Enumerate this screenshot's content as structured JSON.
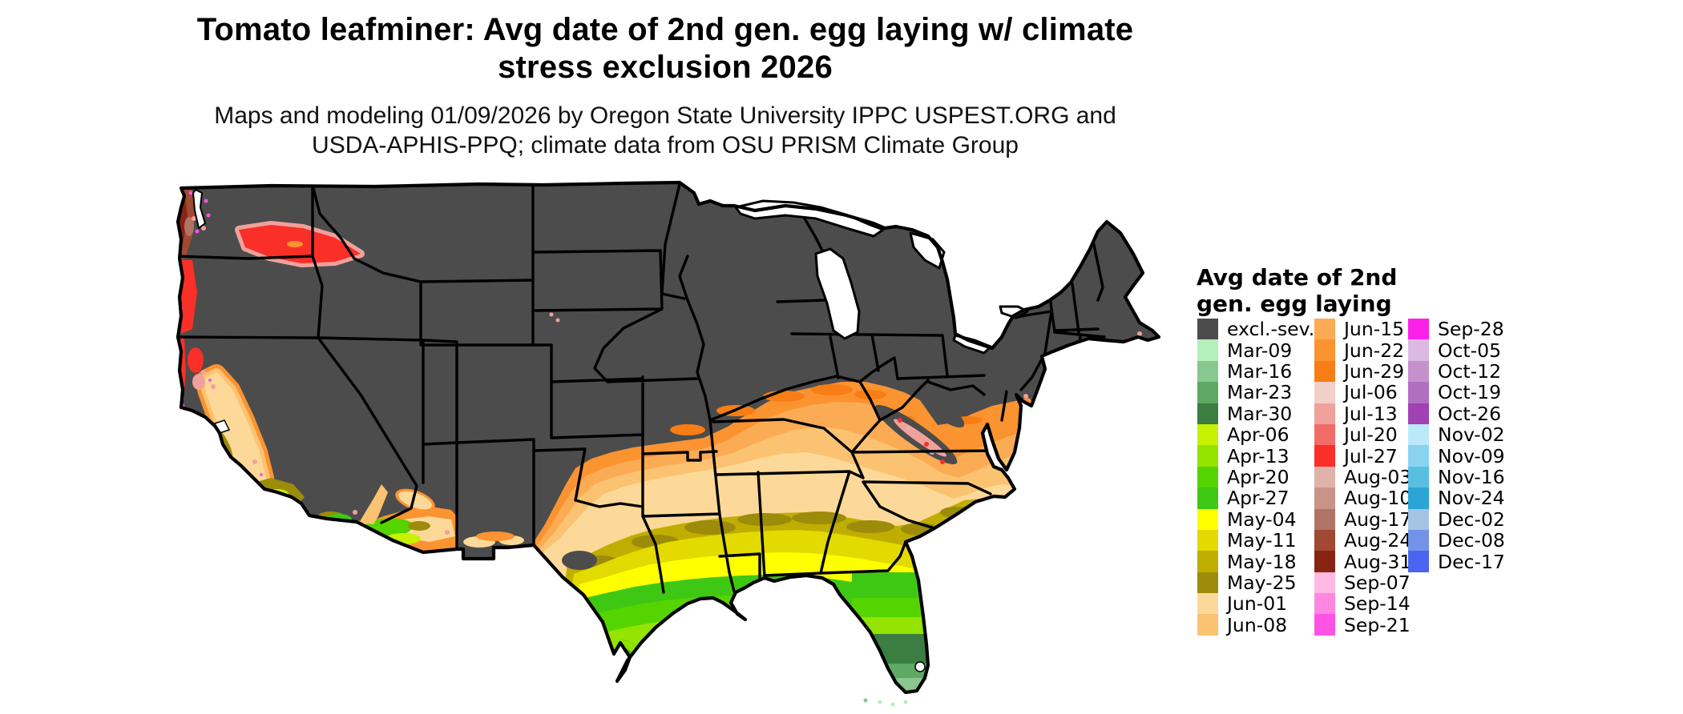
{
  "header": {
    "title_line1": "Tomato leafminer: Avg date of 2nd gen. egg laying w/ climate",
    "title_line2": "stress exclusion 2026",
    "subtitle_line1": "Maps and modeling 01/09/2026 by Oregon State University IPPC USPEST.ORG and",
    "subtitle_line2": "USDA-APHIS-PPQ; climate data from OSU PRISM Climate Group"
  },
  "legend": {
    "title_line1": "Avg date of 2nd",
    "title_line2": "gen. egg laying",
    "columns": [
      {
        "entries": [
          {
            "label": "excl.-sev.",
            "color": "#4c4c4c"
          },
          {
            "label": "Mar-09",
            "color": "#b4f0bc"
          },
          {
            "label": "Mar-16",
            "color": "#88c78d"
          },
          {
            "label": "Mar-23",
            "color": "#5ea963"
          },
          {
            "label": "Mar-30",
            "color": "#3c7d42"
          },
          {
            "label": "Apr-06",
            "color": "#c6f100"
          },
          {
            "label": "Apr-13",
            "color": "#94e300"
          },
          {
            "label": "Apr-20",
            "color": "#55d500"
          },
          {
            "label": "Apr-27",
            "color": "#3fc813"
          },
          {
            "label": "May-04",
            "color": "#ffff00"
          },
          {
            "label": "May-11",
            "color": "#e3da00"
          },
          {
            "label": "May-18",
            "color": "#bfae00"
          },
          {
            "label": "May-25",
            "color": "#9c8c09"
          },
          {
            "label": "Jun-01",
            "color": "#fcd998"
          },
          {
            "label": "Jun-08",
            "color": "#fbc271"
          }
        ]
      },
      {
        "entries": [
          {
            "label": "Jun-15",
            "color": "#fcab55"
          },
          {
            "label": "Jun-22",
            "color": "#fb9331"
          },
          {
            "label": "Jun-29",
            "color": "#f87d15"
          },
          {
            "label": "Jul-06",
            "color": "#f2cfc9"
          },
          {
            "label": "Jul-13",
            "color": "#f0a19c"
          },
          {
            "label": "Jul-20",
            "color": "#f16c66"
          },
          {
            "label": "Jul-27",
            "color": "#f92f28"
          },
          {
            "label": "Aug-03",
            "color": "#dfb3aa"
          },
          {
            "label": "Aug-10",
            "color": "#c9938a"
          },
          {
            "label": "Aug-17",
            "color": "#b27367"
          },
          {
            "label": "Aug-24",
            "color": "#a04a33"
          },
          {
            "label": "Aug-31",
            "color": "#8a2412"
          },
          {
            "label": "Sep-07",
            "color": "#ffb9e5"
          },
          {
            "label": "Sep-14",
            "color": "#ff86e1"
          },
          {
            "label": "Sep-21",
            "color": "#fe53e5"
          }
        ]
      },
      {
        "entries": [
          {
            "label": "Sep-28",
            "color": "#fb20e8"
          },
          {
            "label": "Oct-05",
            "color": "#dcb9e2"
          },
          {
            "label": "Oct-12",
            "color": "#c491cd"
          },
          {
            "label": "Oct-19",
            "color": "#b16fc4"
          },
          {
            "label": "Oct-26",
            "color": "#a042b5"
          },
          {
            "label": "Nov-02",
            "color": "#bae9fb"
          },
          {
            "label": "Nov-09",
            "color": "#8ad3f0"
          },
          {
            "label": "Nov-16",
            "color": "#58bfe3"
          },
          {
            "label": "Nov-24",
            "color": "#2aa5d5"
          },
          {
            "label": "Dec-02",
            "color": "#a5c4e5"
          },
          {
            "label": "Dec-08",
            "color": "#7393e9"
          },
          {
            "label": "Dec-17",
            "color": "#4a63f0"
          }
        ]
      }
    ]
  },
  "map": {
    "region": "conterminous United States",
    "background": "#ffffff",
    "excluded_fill": "#4c4c4c",
    "state_border_color": "#000000"
  }
}
